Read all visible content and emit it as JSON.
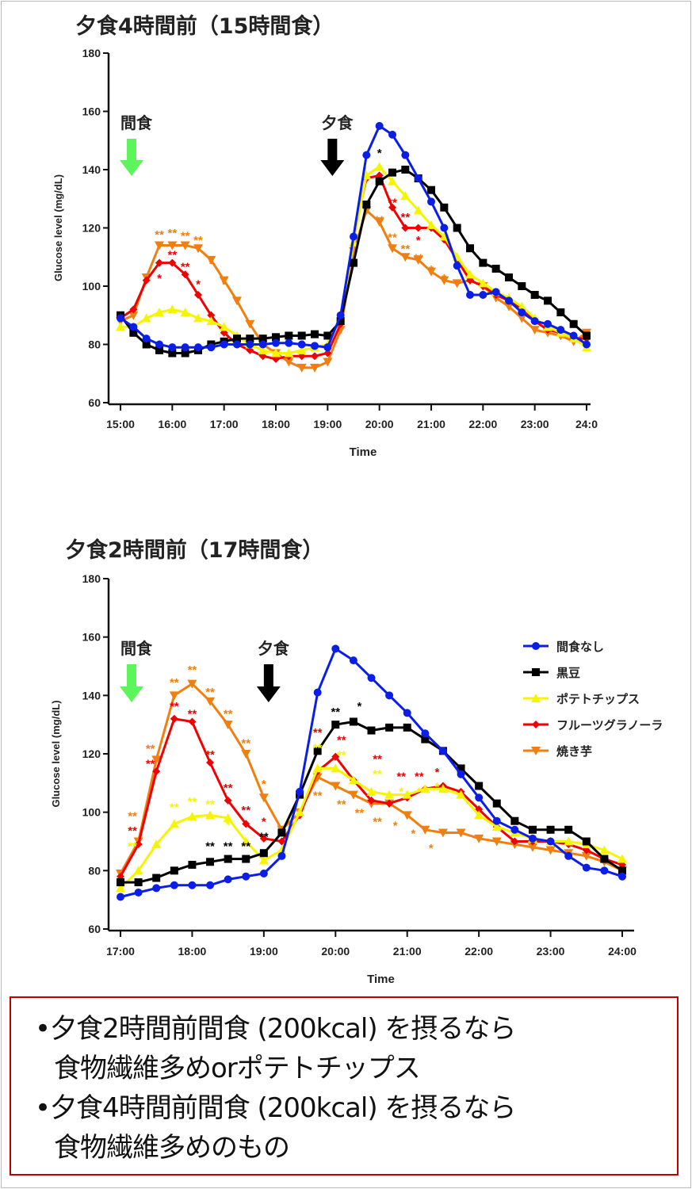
{
  "chart_data": [
    {
      "type": "line",
      "title": "夕食4時間前（15時間食）",
      "xlabel": "Time",
      "ylabel": "Glucose level (mg/dL)",
      "ylim": [
        60,
        180
      ],
      "yticks": [
        "60",
        "80",
        "100",
        "120",
        "140",
        "160",
        "180"
      ],
      "xticks": [
        "15:00",
        "16:00",
        "17:00",
        "18:00",
        "19:00",
        "20:00",
        "21:00",
        "22:00",
        "23:00",
        "24:0"
      ],
      "xlim_hours": [
        15,
        24
      ],
      "grid": false,
      "legend": "none",
      "events": [
        {
          "label": "間食",
          "time": "15:00",
          "color": "#5cf55c"
        },
        {
          "label": "夕食",
          "time": "19:00",
          "color": "#000000"
        }
      ],
      "x": [
        "15:00",
        "15:15",
        "15:30",
        "15:45",
        "16:00",
        "16:15",
        "16:30",
        "16:45",
        "17:00",
        "17:15",
        "17:30",
        "17:45",
        "18:00",
        "18:15",
        "18:30",
        "18:45",
        "19:00",
        "19:15",
        "19:30",
        "19:45",
        "20:00",
        "20:15",
        "20:30",
        "20:45",
        "21:00",
        "21:15",
        "21:30",
        "21:45",
        "22:00",
        "22:15",
        "22:30",
        "22:45",
        "23:00",
        "23:15",
        "23:30",
        "23:45",
        "24:00"
      ],
      "series": [
        {
          "key": "none",
          "color": "#0a1ee8",
          "marker": "circle",
          "values": [
            89,
            86,
            82,
            80,
            79,
            79,
            79,
            79,
            80,
            80,
            80,
            80,
            80.5,
            80.5,
            80,
            79.5,
            79,
            90,
            117,
            145,
            155,
            152,
            145,
            137,
            129,
            120,
            107,
            97,
            97,
            98,
            95,
            91,
            88,
            87,
            85,
            83,
            80
          ]
        },
        {
          "key": "kuromame",
          "color": "#000000",
          "marker": "square",
          "values": [
            90,
            84,
            80,
            78,
            77,
            77,
            78,
            80,
            81,
            82,
            82,
            82,
            82.5,
            83,
            83,
            83.5,
            83,
            88,
            108,
            128,
            136,
            139,
            140,
            137,
            133,
            127,
            120,
            113,
            108,
            106,
            103,
            100,
            97,
            95,
            91,
            87,
            83
          ]
        },
        {
          "key": "chips",
          "color": "#f5f500",
          "marker": "triangle-up",
          "values": [
            86,
            86,
            89,
            91,
            92,
            91,
            89,
            88,
            86,
            83,
            80,
            78,
            77,
            77,
            78,
            79,
            80,
            89,
            115,
            138,
            141,
            136,
            131,
            126,
            121,
            117,
            110,
            104,
            101,
            98,
            96,
            93,
            89,
            86,
            84,
            82,
            79
          ]
        },
        {
          "key": "granola",
          "color": "#f00000",
          "marker": "diamond",
          "values": [
            89,
            92,
            102,
            108,
            108,
            104,
            97,
            90,
            84,
            80,
            78,
            76,
            75,
            76,
            76,
            76,
            77,
            87,
            117,
            137,
            138,
            127,
            120,
            120,
            120,
            116,
            109,
            102,
            100,
            97,
            95,
            92,
            88,
            85,
            84,
            82,
            82
          ]
        },
        {
          "key": "imo",
          "color": "#f07f10",
          "marker": "triangle-down",
          "values": [
            88,
            90,
            103,
            114,
            114,
            114,
            113,
            109,
            102,
            95,
            87,
            80,
            77,
            74,
            72,
            72,
            74,
            85,
            112,
            126,
            122,
            113,
            110,
            109,
            105,
            102,
            101,
            102,
            100,
            96,
            93,
            89,
            85,
            84,
            83,
            81,
            84
          ]
        }
      ],
      "annotations": [
        {
          "time": "15:45",
          "y": 118,
          "text": "**",
          "color": "#f07f10"
        },
        {
          "time": "16:00",
          "y": 118.5,
          "text": "**",
          "color": "#f07f10"
        },
        {
          "time": "16:15",
          "y": 117.5,
          "text": "**",
          "color": "#f07f10"
        },
        {
          "time": "16:30",
          "y": 116,
          "text": "**",
          "color": "#f07f10"
        },
        {
          "time": "16:45",
          "y": 108,
          "text": "*",
          "color": "#f07f10"
        },
        {
          "time": "17:00",
          "y": 101,
          "text": "*",
          "color": "#f07f10"
        },
        {
          "time": "15:45",
          "y": 103,
          "text": "*",
          "color": "#f00000"
        },
        {
          "time": "16:00",
          "y": 111,
          "text": "**",
          "color": "#f00000"
        },
        {
          "time": "16:15",
          "y": 107,
          "text": "**",
          "color": "#f00000"
        },
        {
          "time": "16:30",
          "y": 101,
          "text": "*",
          "color": "#f00000"
        },
        {
          "time": "20:00",
          "y": 146,
          "text": "*",
          "color": "#000000"
        },
        {
          "time": "20:15",
          "y": 129,
          "text": "**",
          "color": "#f00000"
        },
        {
          "time": "20:30",
          "y": 124,
          "text": "**",
          "color": "#f00000"
        },
        {
          "time": "20:45",
          "y": 116,
          "text": "*",
          "color": "#f00000"
        },
        {
          "time": "20:00",
          "y": 123,
          "text": "**",
          "color": "#f07f10"
        },
        {
          "time": "20:15",
          "y": 117,
          "text": "**",
          "color": "#f07f10"
        },
        {
          "time": "20:30",
          "y": 113,
          "text": "**",
          "color": "#f07f10"
        },
        {
          "time": "20:45",
          "y": 110,
          "text": "**",
          "color": "#f07f10"
        },
        {
          "time": "21:00",
          "y": 106,
          "text": "*",
          "color": "#f07f10"
        },
        {
          "time": "21:15",
          "y": 103,
          "text": "*",
          "color": "#f07f10"
        }
      ]
    },
    {
      "type": "line",
      "title": "夕食2時間前（17時間食）",
      "xlabel": "Time",
      "ylabel": "Glucose level (mg/dL)",
      "ylim": [
        60,
        180
      ],
      "yticks": [
        "60",
        "80",
        "100",
        "120",
        "140",
        "160",
        "180"
      ],
      "xticks": [
        "17:00",
        "18:00",
        "19:00",
        "20:00",
        "21:00",
        "22:00",
        "23:00",
        "24:00"
      ],
      "xlim_hours": [
        17,
        24
      ],
      "grid": false,
      "legend": "right",
      "events": [
        {
          "label": "間食",
          "time": "17:00",
          "color": "#5cf55c"
        },
        {
          "label": "夕食",
          "time": "19:00",
          "color": "#000000"
        }
      ],
      "x": [
        "17:00",
        "17:15",
        "17:30",
        "17:45",
        "18:00",
        "18:15",
        "18:30",
        "18:45",
        "19:00",
        "19:15",
        "19:30",
        "19:45",
        "20:00",
        "20:15",
        "20:30",
        "20:45",
        "21:00",
        "21:15",
        "21:30",
        "21:45",
        "22:00",
        "22:15",
        "22:30",
        "22:45",
        "23:00",
        "23:15",
        "23:30",
        "23:45",
        "24:00"
      ],
      "series": [
        {
          "key": "none",
          "name": "間食なし",
          "color": "#0a1ee8",
          "marker": "circle",
          "values": [
            71,
            72.5,
            74,
            75,
            75,
            75,
            77,
            78,
            79,
            85,
            107,
            141,
            156,
            152,
            146,
            140,
            134,
            127,
            121,
            113,
            105,
            97,
            94,
            91,
            90,
            85,
            81,
            80,
            78
          ]
        },
        {
          "key": "kuromame",
          "name": "黒豆",
          "color": "#000000",
          "marker": "square",
          "values": [
            76,
            76,
            77.5,
            80,
            82,
            83,
            84,
            84,
            86,
            93,
            106,
            121,
            130,
            131,
            128,
            129,
            129,
            125,
            121,
            115,
            109,
            103,
            97,
            94,
            94,
            94,
            90,
            84,
            80
          ]
        },
        {
          "key": "chips",
          "name": "ポテトチップス",
          "color": "#f5f500",
          "marker": "triangle-up",
          "values": [
            74,
            80,
            89,
            96,
            98.5,
            99,
            98,
            90,
            83.5,
            87,
            100,
            115,
            115,
            111,
            107,
            106,
            106,
            108,
            108,
            106,
            99,
            95,
            93,
            91,
            90,
            90,
            89,
            87,
            84
          ]
        },
        {
          "key": "granola",
          "name": "フルーツグラノーラ",
          "color": "#f00000",
          "marker": "diamond",
          "values": [
            78,
            89,
            114,
            132,
            131,
            117,
            104,
            96,
            91,
            90,
            99,
            114,
            119,
            111,
            104,
            103,
            105,
            108,
            109,
            107,
            101,
            95,
            90,
            90,
            90,
            89,
            87,
            84,
            82
          ]
        },
        {
          "key": "imo",
          "name": "焼き芋",
          "color": "#f07f10",
          "marker": "triangle-down",
          "values": [
            79,
            90,
            118,
            140,
            144,
            138,
            130,
            120,
            105,
            94,
            100,
            112,
            109,
            106,
            103,
            103,
            99,
            94,
            93,
            93,
            91,
            90,
            89,
            88,
            87,
            86,
            85,
            83,
            80
          ]
        }
      ],
      "annotations": [
        {
          "time": "17:10",
          "y": 99,
          "text": "**",
          "color": "#f07f10"
        },
        {
          "time": "17:10",
          "y": 95,
          "text": "**",
          "color": "#f00000"
        },
        {
          "time": "17:10",
          "y": 93,
          "text": "**",
          "color": "#f5f500"
        },
        {
          "time": "17:25",
          "y": 122,
          "text": "**",
          "color": "#f07f10"
        },
        {
          "time": "17:25",
          "y": 118.5,
          "text": "**",
          "color": "#f00000"
        },
        {
          "time": "17:45",
          "y": 144.7,
          "text": "**",
          "color": "#f07f10"
        },
        {
          "time": "18:00",
          "y": 149,
          "text": "**",
          "color": "#f07f10"
        },
        {
          "time": "18:15",
          "y": 141.5,
          "text": "**",
          "color": "#f07f10"
        },
        {
          "time": "18:30",
          "y": 134,
          "text": "**",
          "color": "#f07f10"
        },
        {
          "time": "18:45",
          "y": 124,
          "text": "**",
          "color": "#f07f10"
        },
        {
          "time": "19:00",
          "y": 110,
          "text": "*",
          "color": "#f07f10"
        },
        {
          "time": "17:45",
          "y": 136.6,
          "text": "**",
          "color": "#f00000"
        },
        {
          "time": "18:00",
          "y": 134,
          "text": "**",
          "color": "#f00000"
        },
        {
          "time": "18:15",
          "y": 120,
          "text": "**",
          "color": "#f00000"
        },
        {
          "time": "18:30",
          "y": 108.6,
          "text": "**",
          "color": "#f00000"
        },
        {
          "time": "18:45",
          "y": 101,
          "text": "**",
          "color": "#f00000"
        },
        {
          "time": "19:00",
          "y": 97,
          "text": "*",
          "color": "#f00000"
        },
        {
          "time": "17:45",
          "y": 102,
          "text": "**",
          "color": "#f5f500"
        },
        {
          "time": "18:00",
          "y": 104,
          "text": "**",
          "color": "#f5f500"
        },
        {
          "time": "18:15",
          "y": 103,
          "text": "**",
          "color": "#f5f500"
        },
        {
          "time": "18:30",
          "y": 96,
          "text": "*",
          "color": "#f5f500"
        },
        {
          "time": "18:15",
          "y": 88.6,
          "text": "**",
          "color": "#000000"
        },
        {
          "time": "18:30",
          "y": 88.6,
          "text": "**",
          "color": "#000000"
        },
        {
          "time": "18:45",
          "y": 88.6,
          "text": "**",
          "color": "#000000"
        },
        {
          "time": "19:00",
          "y": 93,
          "text": "**",
          "color": "#000000"
        },
        {
          "time": "20:00",
          "y": 134.7,
          "text": "**",
          "color": "#000000"
        },
        {
          "time": "20:20",
          "y": 136.5,
          "text": "*",
          "color": "#000000"
        },
        {
          "time": "19:45",
          "y": 127.6,
          "text": "**",
          "color": "#f00000"
        },
        {
          "time": "20:05",
          "y": 125,
          "text": "**",
          "color": "#f00000"
        },
        {
          "time": "20:35",
          "y": 118.5,
          "text": "**",
          "color": "#f00000"
        },
        {
          "time": "20:55",
          "y": 112.6,
          "text": "**",
          "color": "#f00000"
        },
        {
          "time": "21:10",
          "y": 112.6,
          "text": "**",
          "color": "#f00000"
        },
        {
          "time": "21:25",
          "y": 114,
          "text": "*",
          "color": "#f00000"
        },
        {
          "time": "19:45",
          "y": 124,
          "text": "**",
          "color": "#f5f500"
        },
        {
          "time": "20:05",
          "y": 122,
          "text": "**",
          "color": "#f5f500"
        },
        {
          "time": "20:35",
          "y": 115,
          "text": "**",
          "color": "#f5f500"
        },
        {
          "time": "20:55",
          "y": 109,
          "text": "*",
          "color": "#f5f500"
        },
        {
          "time": "21:10",
          "y": 109,
          "text": "*",
          "color": "#f5f500"
        },
        {
          "time": "21:25",
          "y": 109,
          "text": "*",
          "color": "#f5f500"
        },
        {
          "time": "19:45",
          "y": 106,
          "text": "**",
          "color": "#f07f10"
        },
        {
          "time": "20:05",
          "y": 103,
          "text": "**",
          "color": "#f07f10"
        },
        {
          "time": "20:20",
          "y": 100,
          "text": "**",
          "color": "#f07f10"
        },
        {
          "time": "20:35",
          "y": 97,
          "text": "**",
          "color": "#f07f10"
        },
        {
          "time": "20:50",
          "y": 95.7,
          "text": "*",
          "color": "#f07f10"
        },
        {
          "time": "21:05",
          "y": 93,
          "text": "*",
          "color": "#f07f10"
        },
        {
          "time": "21:20",
          "y": 88,
          "text": "*",
          "color": "#f07f10"
        }
      ]
    }
  ],
  "note": {
    "bullet": "•",
    "lines": [
      "夕食2時間前間食 (200kcal) を摂るなら",
      "食物繊維多めorポテトチップス",
      "夕食4時間前間食 (200kcal) を摂るなら",
      "食物繊維多めのもの"
    ]
  }
}
